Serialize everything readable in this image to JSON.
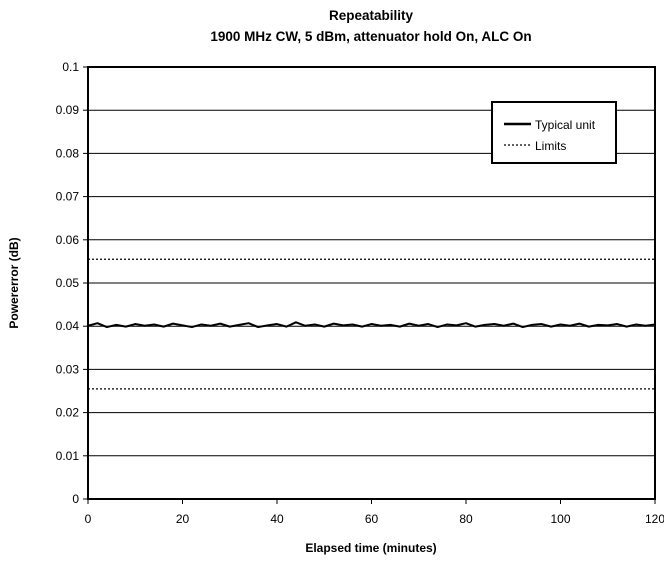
{
  "chart_data": {
    "type": "line",
    "title": "Repeatability",
    "subtitle": "1900 MHz CW, 5 dBm, attenuator hold On, ALC On",
    "xlabel": "Elapsed time (minutes)",
    "ylabel": "Powererror (dB)",
    "xlim": [
      0,
      120
    ],
    "ylim": [
      0,
      0.1
    ],
    "x_ticks": [
      "0",
      "20",
      "40",
      "60",
      "80",
      "100",
      "120"
    ],
    "y_ticks": [
      "0",
      "0.01",
      "0.02",
      "0.03",
      "0.04",
      "0.05",
      "0.06",
      "0.07",
      "0.08",
      "0.09",
      "0.1"
    ],
    "grid": true,
    "legend_position": "top-right",
    "series": [
      {
        "name": "Typical unit",
        "style": "solid",
        "color": "#000000",
        "x": [
          0,
          2,
          4,
          6,
          8,
          10,
          12,
          14,
          16,
          18,
          20,
          22,
          24,
          26,
          28,
          30,
          32,
          34,
          36,
          38,
          40,
          42,
          44,
          46,
          48,
          50,
          52,
          54,
          56,
          58,
          60,
          62,
          64,
          66,
          68,
          70,
          72,
          74,
          76,
          78,
          80,
          82,
          84,
          86,
          88,
          90,
          92,
          94,
          96,
          98,
          100,
          102,
          104,
          106,
          108,
          110,
          112,
          114,
          116,
          118,
          120
        ],
        "y": [
          0.0401,
          0.0407,
          0.0398,
          0.0403,
          0.0399,
          0.0405,
          0.0401,
          0.0404,
          0.0399,
          0.0406,
          0.0402,
          0.0398,
          0.0404,
          0.0401,
          0.0406,
          0.0399,
          0.0403,
          0.0407,
          0.0398,
          0.0402,
          0.0405,
          0.0399,
          0.0409,
          0.0401,
          0.0404,
          0.0399,
          0.0406,
          0.0402,
          0.0404,
          0.0399,
          0.0405,
          0.0401,
          0.0403,
          0.0399,
          0.0406,
          0.0401,
          0.0405,
          0.0398,
          0.0404,
          0.0402,
          0.0407,
          0.0399,
          0.0403,
          0.0405,
          0.0401,
          0.0406,
          0.0398,
          0.0403,
          0.0405,
          0.0399,
          0.0404,
          0.0401,
          0.0406,
          0.0399,
          0.0403,
          0.0402,
          0.0405,
          0.0399,
          0.0404,
          0.0401,
          0.0404
        ]
      },
      {
        "name": "Limits",
        "style": "dotted",
        "color": "#000000",
        "x": [
          0,
          120
        ],
        "y": [
          0.0555,
          0.0555
        ]
      },
      {
        "name": "",
        "style": "dotted",
        "color": "#000000",
        "x": [
          0,
          120
        ],
        "y": [
          0.0255,
          0.0255
        ]
      }
    ]
  }
}
